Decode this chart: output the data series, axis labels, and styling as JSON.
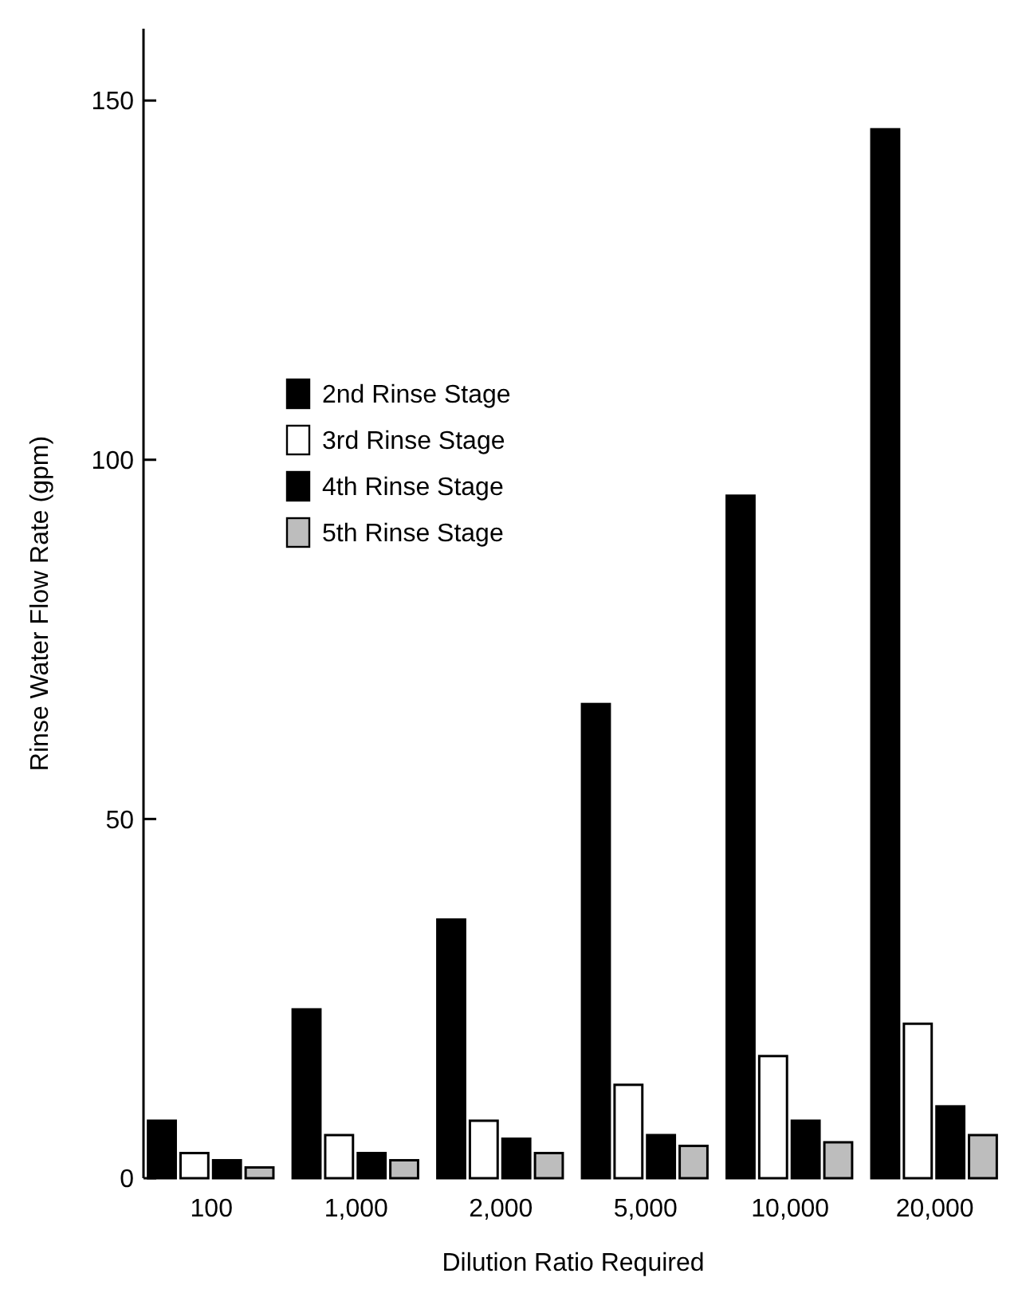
{
  "chart_data": {
    "type": "bar",
    "xlabel": "Dilution Ratio Required",
    "ylabel": "Rinse Water Flow Rate (gpm)",
    "categories": [
      "100",
      "1,000",
      "2,000",
      "5,000",
      "10,000",
      "20,000"
    ],
    "series": [
      {
        "name": "2nd Rinse Stage",
        "color": "#000000",
        "values": [
          8,
          23.5,
          36,
          66,
          95,
          146
        ]
      },
      {
        "name": "3rd Rinse Stage",
        "color": "#ffffff",
        "values": [
          3.5,
          6,
          8,
          13,
          17,
          21.5
        ]
      },
      {
        "name": "4th Rinse Stage",
        "color": "#000000",
        "values": [
          2.5,
          3.5,
          5.5,
          6,
          8,
          10
        ]
      },
      {
        "name": "5th Rinse Stage",
        "color": "#bdbdbd",
        "values": [
          1.5,
          2.5,
          3.5,
          4.5,
          5,
          6
        ]
      }
    ],
    "ylim": [
      0,
      160
    ],
    "yticks": [
      0,
      50,
      100,
      150
    ],
    "grid": false,
    "legend": "top left"
  }
}
